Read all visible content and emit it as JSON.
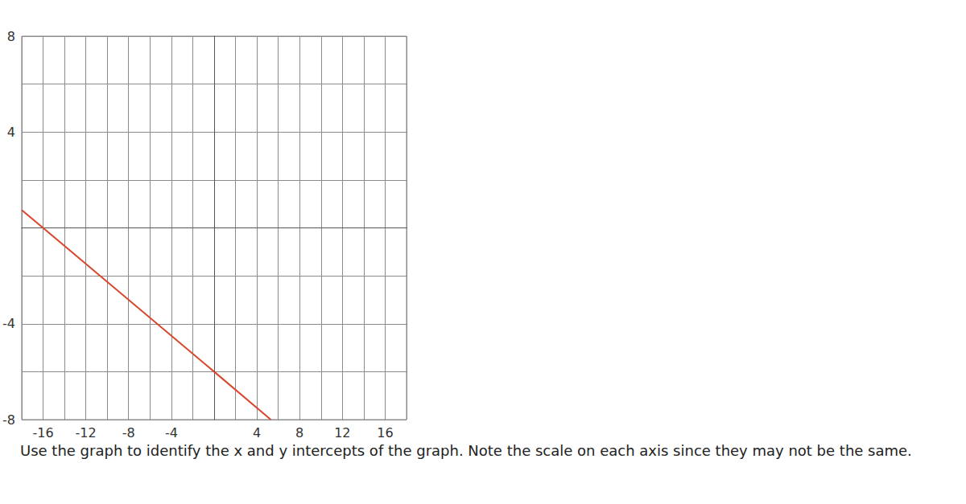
{
  "chart_data": {
    "type": "line",
    "x": [
      -18,
      -16,
      0,
      5.3
    ],
    "values": [
      0.75,
      0,
      -6,
      -8
    ],
    "color": "#d9452b",
    "xlim": [
      -18,
      18
    ],
    "ylim": [
      -8,
      8
    ],
    "xticks": [
      -16,
      -12,
      -8,
      -4,
      4,
      8,
      12,
      16
    ],
    "yticks": [
      -8,
      -4,
      4,
      8
    ],
    "grid": true,
    "annotations": [
      "Use the graph to identify the x and y intercepts of the graph. Note the scale on each axis since they may not be the same."
    ]
  }
}
